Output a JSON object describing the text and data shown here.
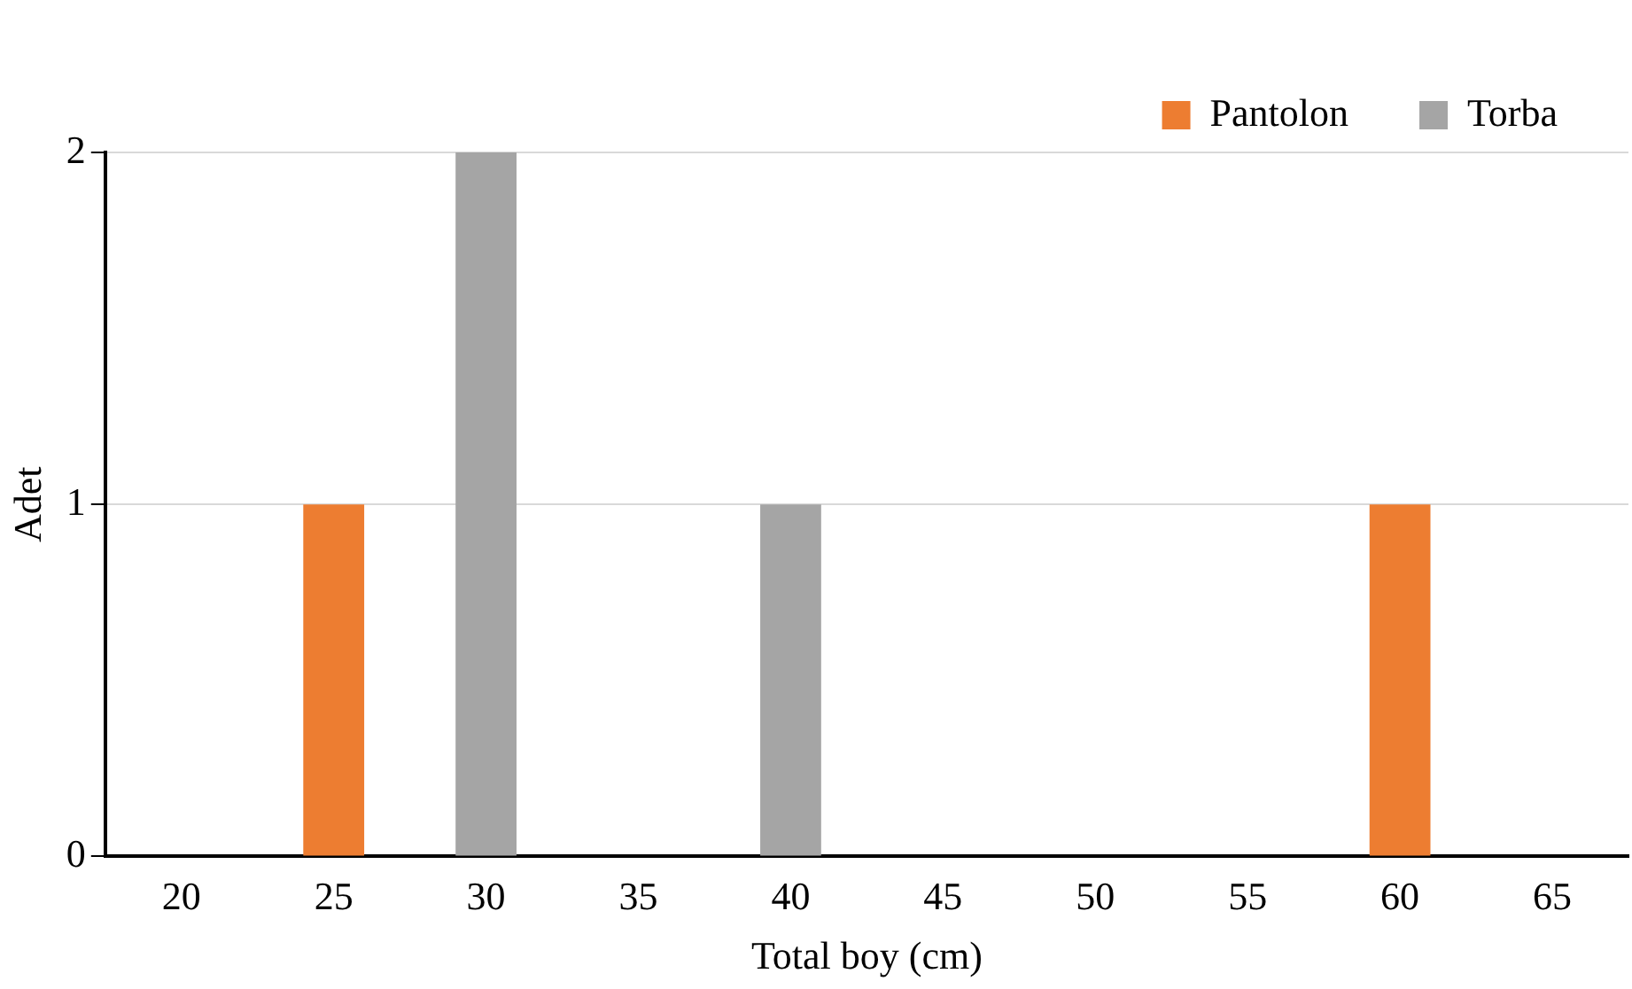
{
  "chart_data": {
    "type": "bar",
    "xlabel": "Total boy (cm)",
    "ylabel": "Adet",
    "categories": [
      "20",
      "25",
      "30",
      "35",
      "40",
      "45",
      "50",
      "55",
      "60",
      "65"
    ],
    "series": [
      {
        "name": "Pantolon",
        "color": "#ed7d31",
        "values": [
          0,
          1,
          0,
          0,
          0,
          0,
          0,
          0,
          1,
          0
        ]
      },
      {
        "name": "Torba",
        "color": "#a5a5a5",
        "values": [
          0,
          0,
          2,
          0,
          1,
          0,
          0,
          0,
          0,
          0
        ]
      }
    ],
    "stacked": true,
    "ylim": [
      0,
      2
    ],
    "yticks": [
      0,
      1,
      2
    ],
    "grid": "y",
    "legend": "top right"
  }
}
